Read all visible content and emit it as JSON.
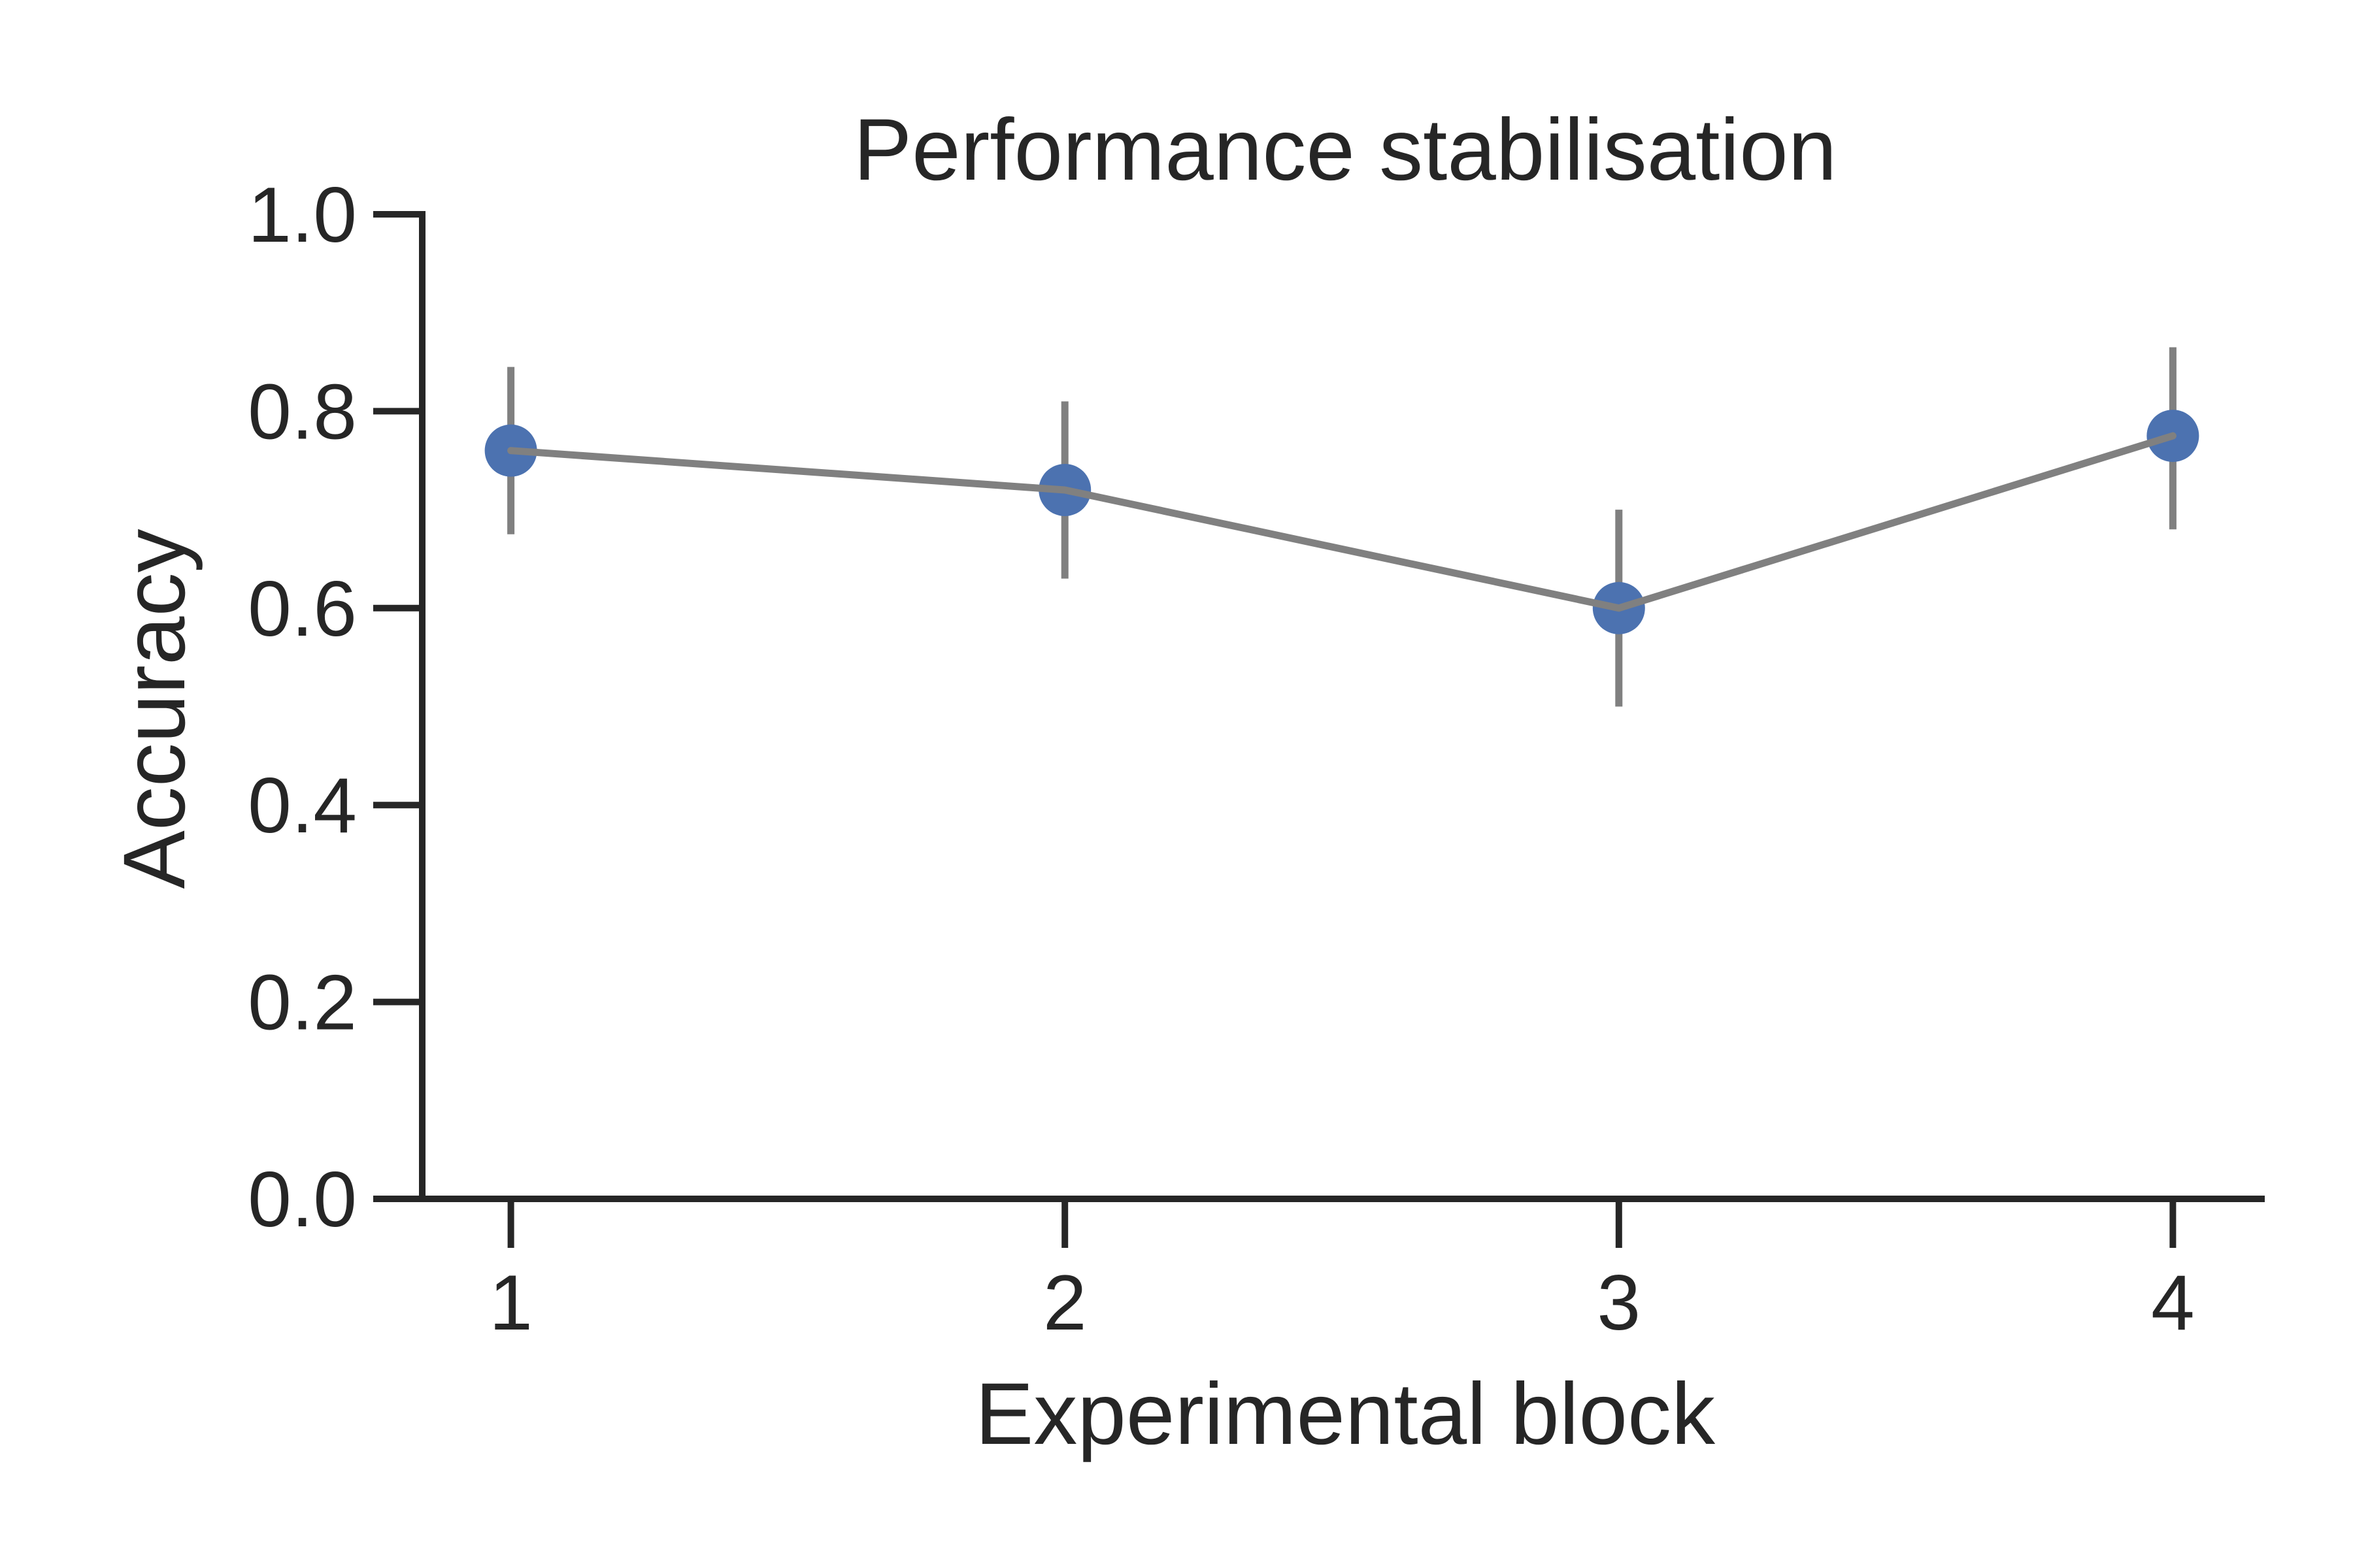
{
  "chart_data": {
    "type": "line",
    "title": "Performance stabilisation",
    "xlabel": "Experimental block",
    "ylabel": "Accuracy",
    "x": [
      1,
      2,
      3,
      4
    ],
    "x_tick_labels": [
      "1",
      "2",
      "3",
      "4"
    ],
    "y_tick_labels": [
      "0.0",
      "0.2",
      "0.4",
      "0.6",
      "0.8",
      "1.0"
    ],
    "y_ticks": [
      0.0,
      0.2,
      0.4,
      0.6,
      0.8,
      1.0
    ],
    "ylim": [
      0.0,
      1.0
    ],
    "xlim": [
      0.84,
      4.16
    ],
    "grid": false,
    "series": [
      {
        "values": [
          0.76,
          0.72,
          0.6,
          0.775
        ],
        "error_low": [
          0.675,
          0.63,
          0.5,
          0.68
        ],
        "error_high": [
          0.845,
          0.81,
          0.7,
          0.865
        ],
        "line_color": "#808080",
        "marker_color": "#4c72b0",
        "errorbar_color": "#808080"
      }
    ],
    "axis_color": "#262626"
  }
}
